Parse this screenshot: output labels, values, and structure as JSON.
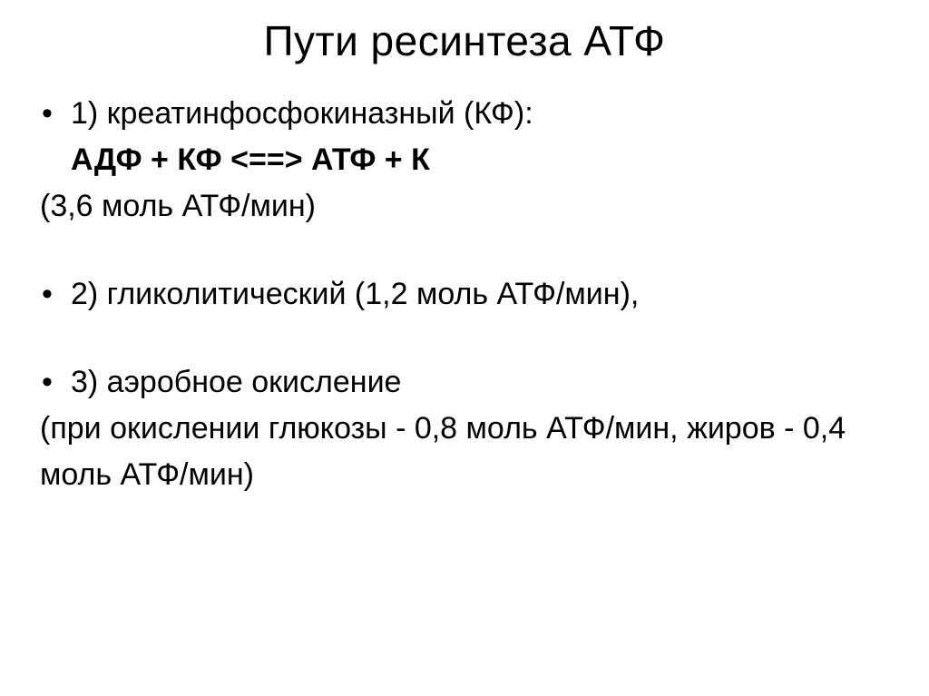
{
  "title": "Пути ресинтеза АТФ",
  "items": {
    "p1": {
      "label": "1) креатинфосфокиназный (КФ):",
      "formula": "АДФ + КФ <==> АТФ + К",
      "rate": "(3,6 моль АТФ/мин)"
    },
    "p2": {
      "label": "2) гликолитический (1,2 моль АТФ/мин),"
    },
    "p3": {
      "label": "3) аэробное окисление",
      "detail": "(при окислении глюкозы - 0,8 моль АТФ/мин, жиров - 0,4 моль АТФ/мин)"
    }
  },
  "style": {
    "title_fontsize": 46,
    "body_fontsize": 34,
    "text_color": "#000000",
    "background_color": "#ffffff",
    "bullet_char": "•"
  }
}
